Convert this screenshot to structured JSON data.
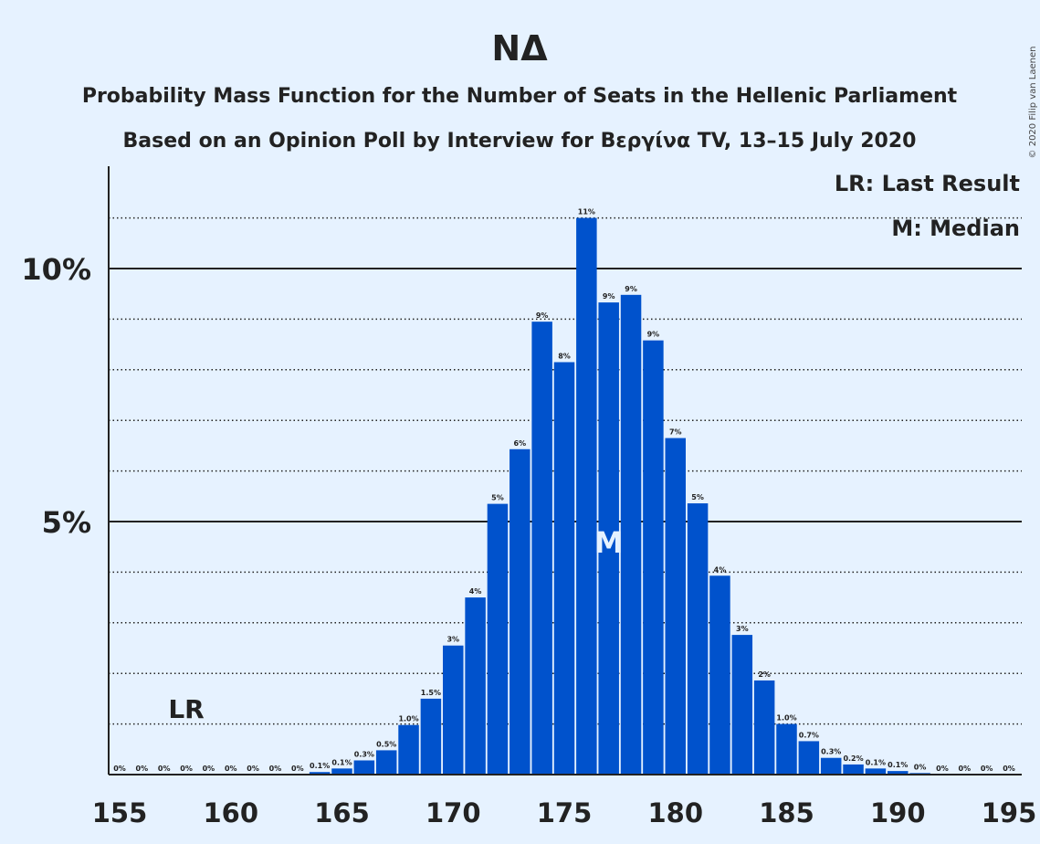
{
  "title": "ΝΔ",
  "subtitle1": "Probability Mass Function for the Number of Seats in the Hellenic Parliament",
  "subtitle2": "Based on an Opinion Poll by Interview for Βεργίνα TV, 13–15 July 2020",
  "copyright": "© 2020 Filip van Laenen",
  "legend": {
    "last_result": "LR: Last Result",
    "median": "M: Median"
  },
  "markers": {
    "last_result_label": "LR",
    "median_label": "M"
  },
  "colors": {
    "background": "#e6f2ff",
    "bar": "#0052cc"
  },
  "chart_data": {
    "type": "bar",
    "xlim": [
      155,
      195
    ],
    "ylim": [
      0,
      12
    ],
    "x_ticks": [
      155,
      160,
      165,
      170,
      175,
      180,
      185,
      190,
      195
    ],
    "y_major_ticks": [
      {
        "value": 5,
        "label": "5%"
      },
      {
        "value": 10,
        "label": "10%"
      }
    ],
    "y_minor_ticks": [
      1,
      2,
      3,
      4,
      6,
      7,
      8,
      9,
      11
    ],
    "last_result_seat": 158,
    "median_seat": 177,
    "seats": [
      155,
      156,
      157,
      158,
      159,
      160,
      161,
      162,
      163,
      164,
      165,
      166,
      167,
      168,
      169,
      170,
      171,
      172,
      173,
      174,
      175,
      176,
      177,
      178,
      179,
      180,
      181,
      182,
      183,
      184,
      185,
      186,
      187,
      188,
      189,
      190,
      191,
      192,
      193,
      194,
      195
    ],
    "values": [
      0,
      0,
      0,
      0,
      0,
      0,
      0,
      0,
      0,
      0.05,
      0.12,
      0.28,
      0.48,
      0.98,
      1.5,
      2.55,
      3.5,
      5.35,
      6.43,
      8.95,
      8.15,
      11.0,
      9.33,
      9.48,
      8.58,
      6.65,
      5.36,
      3.93,
      2.76,
      1.86,
      1.0,
      0.66,
      0.33,
      0.2,
      0.12,
      0.07,
      0.03,
      0,
      0,
      0,
      0
    ],
    "labels": [
      "0%",
      "0%",
      "0%",
      "0%",
      "0%",
      "0%",
      "0%",
      "0%",
      "0%",
      "0.1%",
      "0.1%",
      "0.3%",
      "0.5%",
      "1.0%",
      "1.5%",
      "3%",
      "4%",
      "5%",
      "6%",
      "9%",
      "8%",
      "11%",
      "9%",
      "9%",
      "9%",
      "7%",
      "5%",
      "4%",
      "3%",
      "2%",
      "1.0%",
      "0.7%",
      "0.3%",
      "0.2%",
      "0.1%",
      "0.1%",
      "0%",
      "0%",
      "0%",
      "0%",
      "0%"
    ]
  }
}
